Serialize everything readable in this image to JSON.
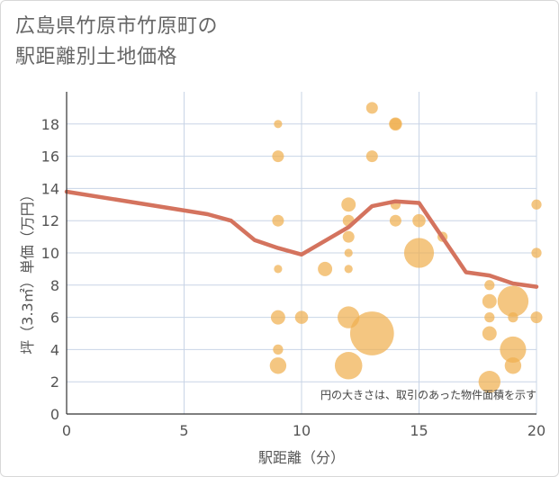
{
  "title_line1": "広島県竹原市竹原町の",
  "title_line2": "駅距離別土地価格",
  "chart_data": {
    "type": "scatter",
    "xlabel": "駅距離（分）",
    "ylabel": "坪（3.3㎡）単価（万円）",
    "xlim": [
      0,
      20
    ],
    "ylim": [
      0,
      20
    ],
    "xticks": [
      0,
      5,
      10,
      15,
      20
    ],
    "yticks": [
      0,
      2,
      4,
      6,
      8,
      10,
      12,
      14,
      16,
      18
    ],
    "grid": true,
    "note": "円の大きさは、取引のあった物件面積を示す",
    "colors": {
      "bubble": "#f0b050",
      "line": "#d4735e",
      "grid": "#c8d4e6"
    },
    "bubbles": [
      {
        "x": 9,
        "y": 18,
        "s": 1
      },
      {
        "x": 9,
        "y": 16,
        "s": 2
      },
      {
        "x": 9,
        "y": 12,
        "s": 2
      },
      {
        "x": 9,
        "y": 9,
        "s": 1
      },
      {
        "x": 9,
        "y": 6,
        "s": 3
      },
      {
        "x": 9,
        "y": 4,
        "s": 1.5
      },
      {
        "x": 9,
        "y": 3,
        "s": 4
      },
      {
        "x": 10,
        "y": 6,
        "s": 2.5
      },
      {
        "x": 11,
        "y": 9,
        "s": 3
      },
      {
        "x": 12,
        "y": 13,
        "s": 3
      },
      {
        "x": 12,
        "y": 12,
        "s": 2
      },
      {
        "x": 12,
        "y": 11,
        "s": 2
      },
      {
        "x": 12,
        "y": 10,
        "s": 1
      },
      {
        "x": 12,
        "y": 9,
        "s": 1
      },
      {
        "x": 12,
        "y": 6,
        "s": 7
      },
      {
        "x": 12,
        "y": 3,
        "s": 11
      },
      {
        "x": 13,
        "y": 19,
        "s": 2
      },
      {
        "x": 13,
        "y": 16,
        "s": 2
      },
      {
        "x": 13,
        "y": 5,
        "s": 28
      },
      {
        "x": 14,
        "y": 18,
        "s": 2.5
      },
      {
        "x": 14,
        "y": 18,
        "s": 2
      },
      {
        "x": 14,
        "y": 13,
        "s": 1.5
      },
      {
        "x": 14,
        "y": 12,
        "s": 2
      },
      {
        "x": 15,
        "y": 12,
        "s": 2.5
      },
      {
        "x": 15,
        "y": 10,
        "s": 13
      },
      {
        "x": 16,
        "y": 11,
        "s": 1.5
      },
      {
        "x": 18,
        "y": 8,
        "s": 1.5
      },
      {
        "x": 18,
        "y": 7,
        "s": 3
      },
      {
        "x": 18,
        "y": 6,
        "s": 1.5
      },
      {
        "x": 18,
        "y": 5,
        "s": 3
      },
      {
        "x": 18,
        "y": 2,
        "s": 7
      },
      {
        "x": 19,
        "y": 7,
        "s": 14
      },
      {
        "x": 19,
        "y": 6,
        "s": 1.5
      },
      {
        "x": 19,
        "y": 4,
        "s": 10
      },
      {
        "x": 19,
        "y": 3,
        "s": 4
      },
      {
        "x": 20,
        "y": 13,
        "s": 1.5
      },
      {
        "x": 20,
        "y": 10,
        "s": 1.5
      },
      {
        "x": 20,
        "y": 6,
        "s": 2
      }
    ],
    "trend": [
      {
        "x": 0,
        "y": 13.8
      },
      {
        "x": 6,
        "y": 12.4
      },
      {
        "x": 7,
        "y": 12.0
      },
      {
        "x": 8,
        "y": 10.8
      },
      {
        "x": 9,
        "y": 10.3
      },
      {
        "x": 10,
        "y": 9.9
      },
      {
        "x": 12,
        "y": 11.6
      },
      {
        "x": 13,
        "y": 12.9
      },
      {
        "x": 14,
        "y": 13.2
      },
      {
        "x": 15,
        "y": 13.1
      },
      {
        "x": 17,
        "y": 8.8
      },
      {
        "x": 18,
        "y": 8.6
      },
      {
        "x": 19,
        "y": 8.1
      },
      {
        "x": 20,
        "y": 7.9
      }
    ]
  }
}
